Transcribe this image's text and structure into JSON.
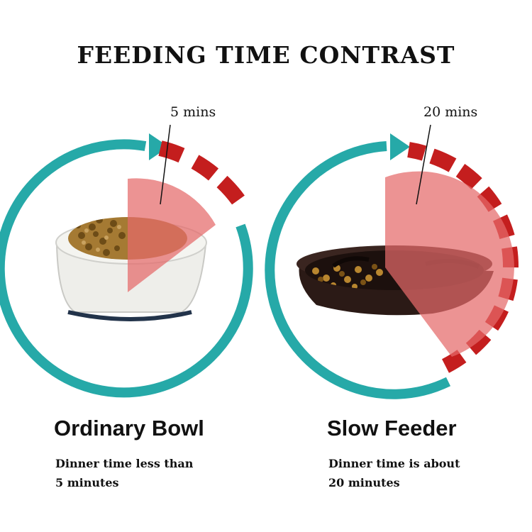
{
  "title": "FEEDING TIME CONTRAST",
  "colors": {
    "ring": "#26a9a8",
    "time_block": "#c41e1e",
    "time_wedge": "#e78080"
  },
  "left": {
    "time_label": "5 mins",
    "heading": "Ordinary Bowl",
    "description_line1": "Dinner time less than",
    "description_line2": "5 minutes"
  },
  "right": {
    "time_label": "20 mins",
    "heading": "Slow Feeder",
    "description_line1": "Dinner time is about",
    "description_line2": "20 minutes"
  }
}
